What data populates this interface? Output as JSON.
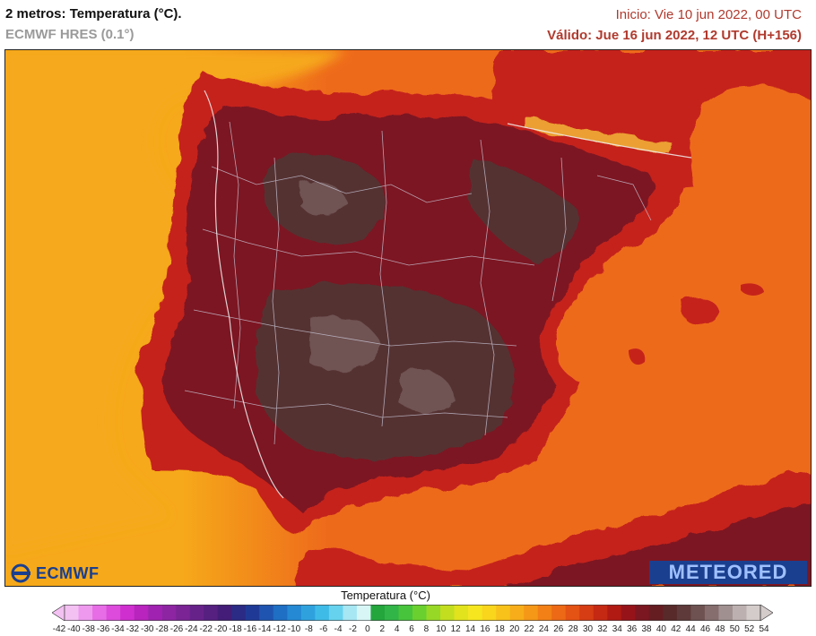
{
  "header": {
    "title": "2 metros: Temperatura (°C).",
    "model": "ECMWF HRES (0.1°)",
    "init": "Inicio: Vie 10 jun 2022, 00 UTC",
    "valid": "Válido: Jue 16 jun 2022, 12 UTC (H+156)"
  },
  "logos": {
    "left": "ECMWF",
    "right": "METEORED"
  },
  "legend": {
    "title": "Temperatura (°C)",
    "labels": [
      "-42",
      "-40",
      "-38",
      "-36",
      "-34",
      "-32",
      "-30",
      "-28",
      "-26",
      "-24",
      "-22",
      "-20",
      "-18",
      "-16",
      "-14",
      "-12",
      "-10",
      "-8",
      "-6",
      "-4",
      "-2",
      "0",
      "2",
      "4",
      "6",
      "8",
      "10",
      "12",
      "14",
      "16",
      "18",
      "20",
      "22",
      "24",
      "26",
      "28",
      "30",
      "32",
      "34",
      "36",
      "38",
      "40",
      "42",
      "44",
      "46",
      "48",
      "50",
      "52",
      "54"
    ],
    "colors": [
      "#f3c1f2",
      "#ee99ee",
      "#e66de6",
      "#dc4bdc",
      "#cf2fcf",
      "#b824bd",
      "#a022b0",
      "#8d25a3",
      "#7a2495",
      "#67228a",
      "#552080",
      "#431d77",
      "#2b2a84",
      "#1f3a96",
      "#1f55b0",
      "#1f6fc4",
      "#2589d3",
      "#2fa2de",
      "#3fbbe7",
      "#66d2ee",
      "#a6e7f3",
      "#d8f6f6",
      "#24a63d",
      "#32b548",
      "#47c43c",
      "#6ad02f",
      "#97d826",
      "#c2de1f",
      "#e2e31d",
      "#f5e61f",
      "#f9d51c",
      "#f8c21a",
      "#f7ad19",
      "#f59717",
      "#f28016",
      "#ed6915",
      "#e45214",
      "#d63d14",
      "#c52913",
      "#b01a13",
      "#97131a",
      "#7b1720",
      "#651d22",
      "#592a2a",
      "#5e3a3a",
      "#6e5252",
      "#866e6e",
      "#a09090",
      "#bcb0b0",
      "#d4cbcb"
    ]
  },
  "map": {
    "colors": {
      "sea_cool": "#f6a91a",
      "sea_warm": "#ee6a1b",
      "coast_hot": "#c5231a",
      "land_hot": "#7b1720",
      "land_very_hot": "#553030",
      "land_extreme": "#705353"
    }
  }
}
